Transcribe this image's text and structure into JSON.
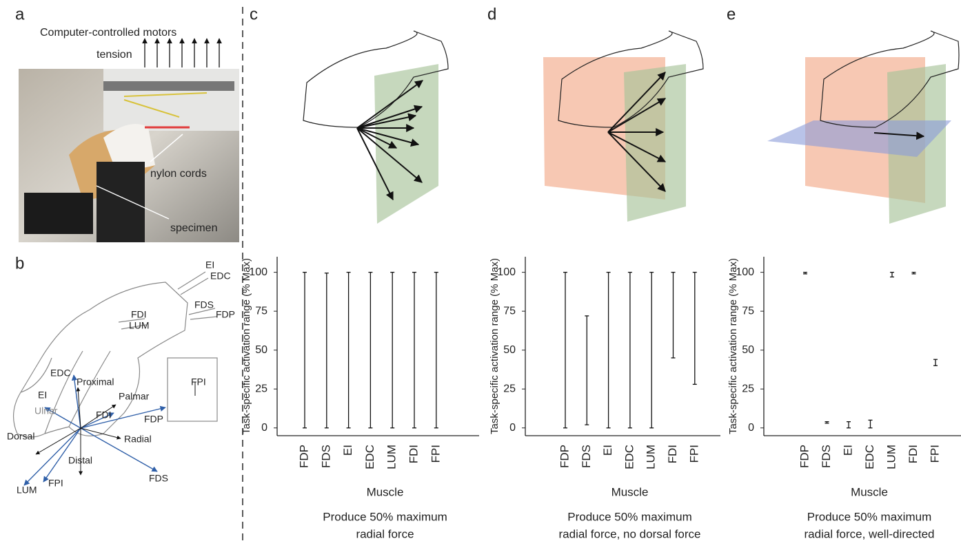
{
  "panel_labels": [
    "a",
    "b",
    "c",
    "d",
    "e"
  ],
  "panel_a": {
    "motors": "Computer-controlled motors",
    "tension": "tension",
    "cords": "nylon cords",
    "specimen": "specimen"
  },
  "panel_b": {
    "labels": [
      "EI",
      "EDC",
      "FDS",
      "FDP",
      "FDI",
      "LUM",
      "EDC",
      "Proximal",
      "EI",
      "Ulnar",
      "Palmar",
      "FDI",
      "FDP",
      "Radial",
      "Dorsal",
      "Distal",
      "FDS",
      "LUM",
      "FPI",
      "FPI"
    ]
  },
  "chart_data": [
    {
      "type": "range",
      "ylabel": "Task-specific activation range (% Max)",
      "xlabel": "Muscle",
      "caption": [
        "Produce 50% maximum",
        "radial force"
      ],
      "categories": [
        "FDP",
        "FDS",
        "EI",
        "EDC",
        "LUM",
        "FDI",
        "FPI"
      ],
      "low": [
        0,
        0,
        0,
        0,
        0,
        0,
        0
      ],
      "high": [
        100,
        99.5,
        100,
        100,
        100,
        100,
        100
      ],
      "ylim": [
        -5,
        110
      ],
      "yticks": [
        0,
        25,
        50,
        75,
        100
      ]
    },
    {
      "type": "range",
      "ylabel": "Task-specific activation range (% Max)",
      "xlabel": "Muscle",
      "caption": [
        "Produce 50% maximum",
        "radial force, no dorsal force"
      ],
      "categories": [
        "FDP",
        "FDS",
        "EI",
        "EDC",
        "LUM",
        "FDI",
        "FPI"
      ],
      "low": [
        0,
        2,
        0,
        0,
        0,
        45,
        28
      ],
      "high": [
        100,
        72,
        100,
        100,
        100,
        100,
        100
      ],
      "ylim": [
        -5,
        110
      ],
      "yticks": [
        0,
        25,
        50,
        75,
        100
      ]
    },
    {
      "type": "range",
      "ylabel": "Task-specific activation range (% Max)",
      "xlabel": "Muscle",
      "caption": [
        "Produce 50% maximum",
        "radial force, well-directed"
      ],
      "categories": [
        "FDP",
        "FDS",
        "EI",
        "EDC",
        "LUM",
        "FDI",
        "FPI"
      ],
      "low": [
        99,
        3,
        0,
        0,
        97,
        99,
        40
      ],
      "high": [
        100,
        4,
        4,
        5,
        100,
        100,
        44
      ],
      "ylim": [
        -5,
        110
      ],
      "yticks": [
        0,
        25,
        50,
        75,
        100
      ]
    }
  ]
}
